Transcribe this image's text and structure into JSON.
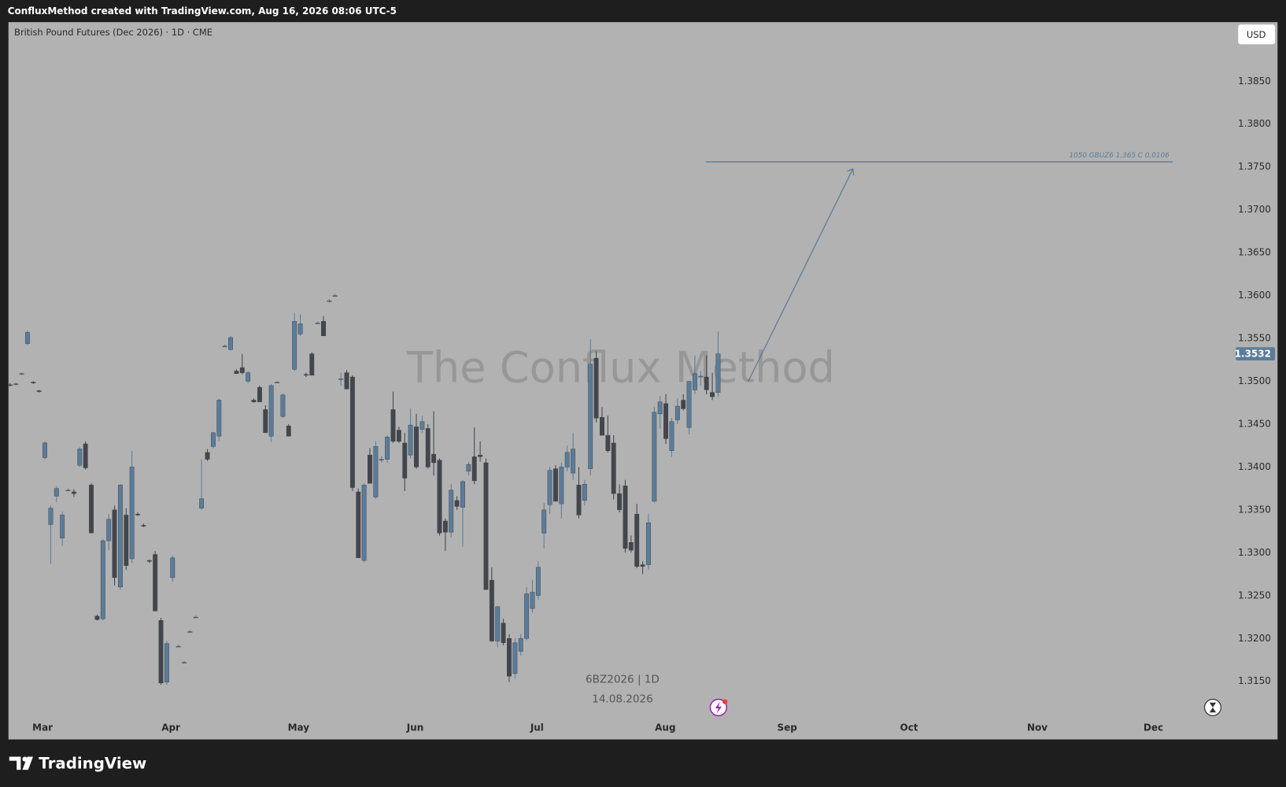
{
  "header": "ConfluxMethod created with TradingView.com, Aug 16, 2026 08:06 UTC-5",
  "brand": "TradingView",
  "chart_data": {
    "type": "candlestick",
    "title": "British Pound Futures (Dec 2026) · 1D · CME",
    "currency": "USD",
    "watermark": "The Conflux Method",
    "symbol_label": "6BZ2026 | 1D",
    "date_label": "14.08.2026",
    "current_price": 1.3532,
    "annotation": {
      "label": "1050 GBUZ6 1,365 C 0,0106",
      "value": 1.3756
    },
    "up_color": "#5b7c99",
    "down_color": "#43464d",
    "open": [
      1.3496,
      1.3497,
      1.3508,
      1.3544,
      1.3499,
      1.3489,
      1.3411,
      1.3333,
      1.3366,
      1.3317,
      1.3373,
      1.3371,
      1.3402,
      1.3427,
      1.3379,
      1.3226,
      1.3223,
      1.3314,
      1.335,
      1.326,
      1.3344,
      1.3293,
      1.3345,
      1.3332,
      1.3291,
      1.3298,
      1.3221,
      1.3149,
      1.3271,
      1.3191,
      1.3172,
      1.3208,
      1.3225,
      1.3352,
      1.3417,
      1.3424,
      1.3436,
      1.3541,
      1.3537,
      1.3512,
      1.3516,
      1.35,
      1.3478,
      1.3493,
      1.3467,
      1.3436,
      1.3499,
      1.3459,
      1.3448,
      1.3514,
      1.3555,
      1.3508,
      1.3532,
      1.3568,
      1.357,
      1.3594,
      1.36,
      1.3503,
      1.351,
      1.3505,
      1.3371,
      1.3291,
      1.3414,
      1.3365,
      1.3409,
      1.3409,
      1.3467,
      1.3443,
      1.3428,
      1.3414,
      1.3447,
      1.3444,
      1.3445,
      1.3415,
      1.3408,
      1.3337,
      1.3324,
      1.3361,
      1.3353,
      1.3395,
      1.3412,
      1.3414,
      1.3405,
      1.3268,
      1.3197,
      1.3218,
      1.32,
      1.3159,
      1.3185,
      1.32,
      1.3235,
      1.325,
      1.3323,
      1.3356,
      1.3398,
      1.3357,
      1.34,
      1.3393,
      1.3379,
      1.3361,
      1.3398,
      1.3527,
      1.3458,
      1.3437,
      1.3428,
      1.3369,
      1.3378,
      1.3312,
      1.3345,
      1.3286,
      1.3286,
      1.336,
      1.3462,
      1.3474,
      1.3419,
      1.3455,
      1.3478,
      1.3446,
      1.349,
      1.3505,
      1.3505,
      1.3487,
      1.3487
    ],
    "high": [
      1.3498,
      1.3499,
      1.351,
      1.3559,
      1.35,
      1.349,
      1.343,
      1.3355,
      1.3378,
      1.3348,
      1.3375,
      1.3374,
      1.3423,
      1.343,
      1.3381,
      1.3228,
      1.3316,
      1.3345,
      1.3355,
      1.338,
      1.3352,
      1.3419,
      1.3347,
      1.3334,
      1.3292,
      1.3302,
      1.3224,
      1.3197,
      1.3297,
      1.3193,
      1.3174,
      1.321,
      1.3227,
      1.3409,
      1.3421,
      1.3441,
      1.348,
      1.3543,
      1.3553,
      1.3514,
      1.3532,
      1.3512,
      1.348,
      1.3495,
      1.3472,
      1.3497,
      1.35,
      1.3486,
      1.345,
      1.358,
      1.3578,
      1.351,
      1.3534,
      1.357,
      1.3576,
      1.3596,
      1.3602,
      1.351,
      1.3513,
      1.3507,
      1.3375,
      1.3381,
      1.3422,
      1.343,
      1.3413,
      1.3437,
      1.3488,
      1.3447,
      1.344,
      1.3468,
      1.3462,
      1.346,
      1.345,
      1.3465,
      1.341,
      1.334,
      1.338,
      1.3366,
      1.3385,
      1.3406,
      1.3446,
      1.343,
      1.341,
      1.3283,
      1.3238,
      1.3223,
      1.3205,
      1.32,
      1.3205,
      1.326,
      1.3268,
      1.329,
      1.3358,
      1.34,
      1.3402,
      1.3405,
      1.3425,
      1.344,
      1.34,
      1.3385,
      1.3549,
      1.3535,
      1.347,
      1.346,
      1.3437,
      1.338,
      1.3385,
      1.332,
      1.3357,
      1.329,
      1.3345,
      1.347,
      1.3483,
      1.3485,
      1.3457,
      1.348,
      1.3485,
      1.35,
      1.353,
      1.3512,
      1.353,
      1.351,
      1.3558
    ],
    "low": [
      1.3494,
      1.3495,
      1.3507,
      1.3542,
      1.3497,
      1.3487,
      1.3409,
      1.3287,
      1.3359,
      1.3308,
      1.3372,
      1.3365,
      1.34,
      1.3397,
      1.3323,
      1.3221,
      1.3221,
      1.3303,
      1.3262,
      1.3257,
      1.328,
      1.3288,
      1.3343,
      1.333,
      1.3288,
      1.3232,
      1.3146,
      1.3146,
      1.3266,
      1.319,
      1.3171,
      1.3207,
      1.3224,
      1.335,
      1.3407,
      1.3422,
      1.343,
      1.354,
      1.3536,
      1.3509,
      1.3508,
      1.3498,
      1.3475,
      1.3476,
      1.344,
      1.3429,
      1.3498,
      1.3457,
      1.3436,
      1.3512,
      1.3553,
      1.3505,
      1.3507,
      1.3567,
      1.3553,
      1.3592,
      1.3599,
      1.3495,
      1.3491,
      1.3372,
      1.3294,
      1.3289,
      1.3381,
      1.3363,
      1.3405,
      1.3405,
      1.3428,
      1.3428,
      1.3372,
      1.341,
      1.3398,
      1.344,
      1.3398,
      1.339,
      1.332,
      1.3302,
      1.3318,
      1.335,
      1.3307,
      1.339,
      1.338,
      1.3406,
      1.3257,
      1.3196,
      1.319,
      1.3192,
      1.3149,
      1.3153,
      1.318,
      1.3198,
      1.323,
      1.3245,
      1.3305,
      1.3345,
      1.336,
      1.334,
      1.3395,
      1.3385,
      1.334,
      1.3355,
      1.339,
      1.3452,
      1.3437,
      1.3417,
      1.3362,
      1.3347,
      1.33,
      1.33,
      1.3282,
      1.3275,
      1.328,
      1.3358,
      1.3445,
      1.3427,
      1.3412,
      1.345,
      1.3466,
      1.3438,
      1.3485,
      1.3495,
      1.3485,
      1.3478,
      1.3482
    ],
    "close": [
      1.3495,
      1.3497,
      1.3509,
      1.3557,
      1.3498,
      1.3488,
      1.3428,
      1.3352,
      1.3375,
      1.3344,
      1.3373,
      1.3369,
      1.3421,
      1.3399,
      1.3323,
      1.3222,
      1.3314,
      1.3339,
      1.3271,
      1.3379,
      1.3285,
      1.34,
      1.3344,
      1.3331,
      1.329,
      1.3232,
      1.3148,
      1.3194,
      1.3294,
      1.3191,
      1.3172,
      1.3208,
      1.3225,
      1.3363,
      1.3409,
      1.344,
      1.3478,
      1.3541,
      1.3551,
      1.3509,
      1.351,
      1.351,
      1.3476,
      1.3476,
      1.344,
      1.3495,
      1.3499,
      1.3484,
      1.3436,
      1.357,
      1.3567,
      1.3507,
      1.3507,
      1.3568,
      1.3553,
      1.3594,
      1.36,
      1.3503,
      1.3491,
      1.3376,
      1.3294,
      1.3379,
      1.3381,
      1.3424,
      1.3409,
      1.3435,
      1.343,
      1.343,
      1.3387,
      1.3449,
      1.34,
      1.3453,
      1.34,
      1.3405,
      1.3323,
      1.3324,
      1.3373,
      1.3354,
      1.3383,
      1.3403,
      1.3384,
      1.3412,
      1.3257,
      1.3197,
      1.3237,
      1.3195,
      1.3156,
      1.3195,
      1.32,
      1.3252,
      1.3254,
      1.3283,
      1.335,
      1.3396,
      1.336,
      1.34,
      1.3417,
      1.3421,
      1.3344,
      1.338,
      1.352,
      1.3457,
      1.3437,
      1.3419,
      1.3369,
      1.335,
      1.3305,
      1.3303,
      1.3284,
      1.3284,
      1.3335,
      1.3464,
      1.3476,
      1.3433,
      1.3453,
      1.3471,
      1.3468,
      1.35,
      1.3509,
      1.3506,
      1.349,
      1.3482,
      1.3532
    ],
    "xlim": [
      -0.28,
      210.2
    ],
    "xticks": [
      {
        "value": 5.6,
        "label": "Mar"
      },
      {
        "value": 27.7,
        "label": "Apr"
      },
      {
        "value": 49.7,
        "label": "May"
      },
      {
        "value": 69.8,
        "label": "Jun"
      },
      {
        "value": 90.8,
        "label": "Jul"
      },
      {
        "value": 112.9,
        "label": "Aug"
      },
      {
        "value": 133.9,
        "label": "Sep"
      },
      {
        "value": 154.9,
        "label": "Oct"
      },
      {
        "value": 177.0,
        "label": "Nov"
      },
      {
        "value": 197.0,
        "label": "Dec"
      }
    ],
    "ylim": [
      1.3108,
      1.3919
    ],
    "yticks": [
      {
        "value": 1.315,
        "label": "1.3150"
      },
      {
        "value": 1.32,
        "label": "1.3200"
      },
      {
        "value": 1.325,
        "label": "1.3250"
      },
      {
        "value": 1.33,
        "label": "1.3300"
      },
      {
        "value": 1.335,
        "label": "1.3350"
      },
      {
        "value": 1.34,
        "label": "1.3400"
      },
      {
        "value": 1.345,
        "label": "1.3450"
      },
      {
        "value": 1.35,
        "label": "1.3500"
      },
      {
        "value": 1.355,
        "label": "1.3550"
      },
      {
        "value": 1.36,
        "label": "1.3600"
      },
      {
        "value": 1.365,
        "label": "1.3650"
      },
      {
        "value": 1.37,
        "label": "1.3700"
      },
      {
        "value": 1.375,
        "label": "1.3750"
      },
      {
        "value": 1.38,
        "label": "1.3800"
      },
      {
        "value": 1.385,
        "label": "1.3850"
      }
    ]
  }
}
